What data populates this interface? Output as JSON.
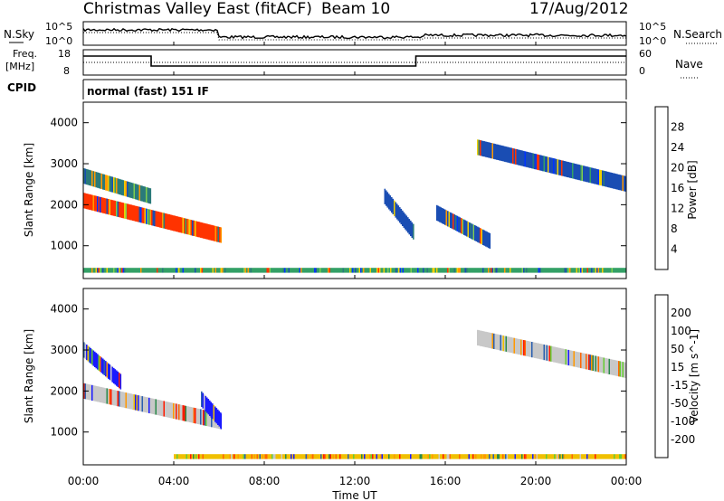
{
  "header": {
    "title": "Christmas Valley East (fitACF)",
    "beam": "Beam 10",
    "date": "17/Aug/2012"
  },
  "noise_panel": {
    "left_label": "N.Sky",
    "right_label": "N.Search",
    "left_ticks": [
      "10^5",
      "10^0"
    ],
    "right_ticks": [
      "10^5",
      "10^0"
    ]
  },
  "freq_panel": {
    "left_label": "Freq.",
    "left_unit": "[MHz]",
    "right_label": "Nave",
    "left_ticks": [
      "18",
      "8"
    ],
    "right_ticks": [
      "60",
      "0"
    ]
  },
  "cpid_panel": {
    "label": "CPID",
    "text": "normal (fast) 151 IF"
  },
  "time_axis": {
    "label": "Time UT",
    "ticks": [
      "00:00",
      "04:00",
      "08:00",
      "12:00",
      "16:00",
      "20:00",
      "00:00"
    ]
  },
  "chart_data": [
    {
      "type": "heatmap",
      "name": "power",
      "ylabel": "Slant Range [km]",
      "yticks": [
        1000,
        2000,
        3000,
        4000
      ],
      "ylim": [
        200,
        4500
      ],
      "xlim": [
        0,
        24
      ],
      "colorbar": {
        "label": "Power [dB]",
        "ticks": [
          "4",
          "8",
          "12",
          "16",
          "20",
          "24",
          "28"
        ],
        "colors": [
          "#0033ff",
          "#1a4db3",
          "#2a7a7a",
          "#33a066",
          "#7fcf4f",
          "#f0d000",
          "#ff9900",
          "#ff3300"
        ]
      },
      "regions": [
        {
          "t_start": 0.0,
          "t_end": 6.1,
          "range_start": 2100,
          "range_end": 1250,
          "band_color": "#ff3300"
        },
        {
          "t_start": 0.0,
          "t_end": 3.0,
          "range_start": 2700,
          "range_end": 2200,
          "band_color": "#2a7a7a"
        },
        {
          "t_start": 13.3,
          "t_end": 14.6,
          "range_start": 2200,
          "range_end": 1300,
          "band_color": "#1a4db3"
        },
        {
          "t_start": 15.6,
          "t_end": 18.0,
          "range_start": 1800,
          "range_end": 1100,
          "band_color": "#1a4db3"
        },
        {
          "t_start": 17.4,
          "t_end": 24.0,
          "range_start": 3400,
          "range_end": 2500,
          "band_color": "#1a4db3"
        },
        {
          "t_start": 0.0,
          "t_end": 24.0,
          "range_start": 400,
          "range_end": 400,
          "band_color": "#33a066"
        }
      ]
    },
    {
      "type": "heatmap",
      "name": "velocity",
      "ylabel": "Slant Range [km]",
      "yticks": [
        1000,
        2000,
        3000,
        4000
      ],
      "ylim": [
        200,
        4500
      ],
      "xlim": [
        0,
        24
      ],
      "colorbar": {
        "label": "Velocity [m s^-1]",
        "ticks": [
          "200",
          "100",
          "50",
          "15",
          "-15",
          "-50",
          "-100",
          "-200"
        ],
        "colors": [
          "#1a1aff",
          "#2a5fb0",
          "#2a8a4a",
          "#66cc33",
          "#c8c8c8",
          "#f0c000",
          "#ff9900",
          "#ff6600",
          "#ff1a00"
        ]
      },
      "regions": [
        {
          "t_start": 0.0,
          "t_end": 1.7,
          "range_start": 3000,
          "range_end": 2200,
          "band_color": "#1a1aff"
        },
        {
          "t_start": 0.0,
          "t_end": 6.1,
          "range_start": 2000,
          "range_end": 1250,
          "band_color": "#c8c8c8"
        },
        {
          "t_start": 5.2,
          "t_end": 6.1,
          "range_start": 1800,
          "range_end": 1250,
          "band_color": "#1a1aff"
        },
        {
          "t_start": 17.4,
          "t_end": 24.0,
          "range_start": 3300,
          "range_end": 2500,
          "band_color": "#c8c8c8"
        },
        {
          "t_start": 4.0,
          "t_end": 24.0,
          "range_start": 400,
          "range_end": 400,
          "band_color": "#f0c000"
        }
      ]
    }
  ]
}
